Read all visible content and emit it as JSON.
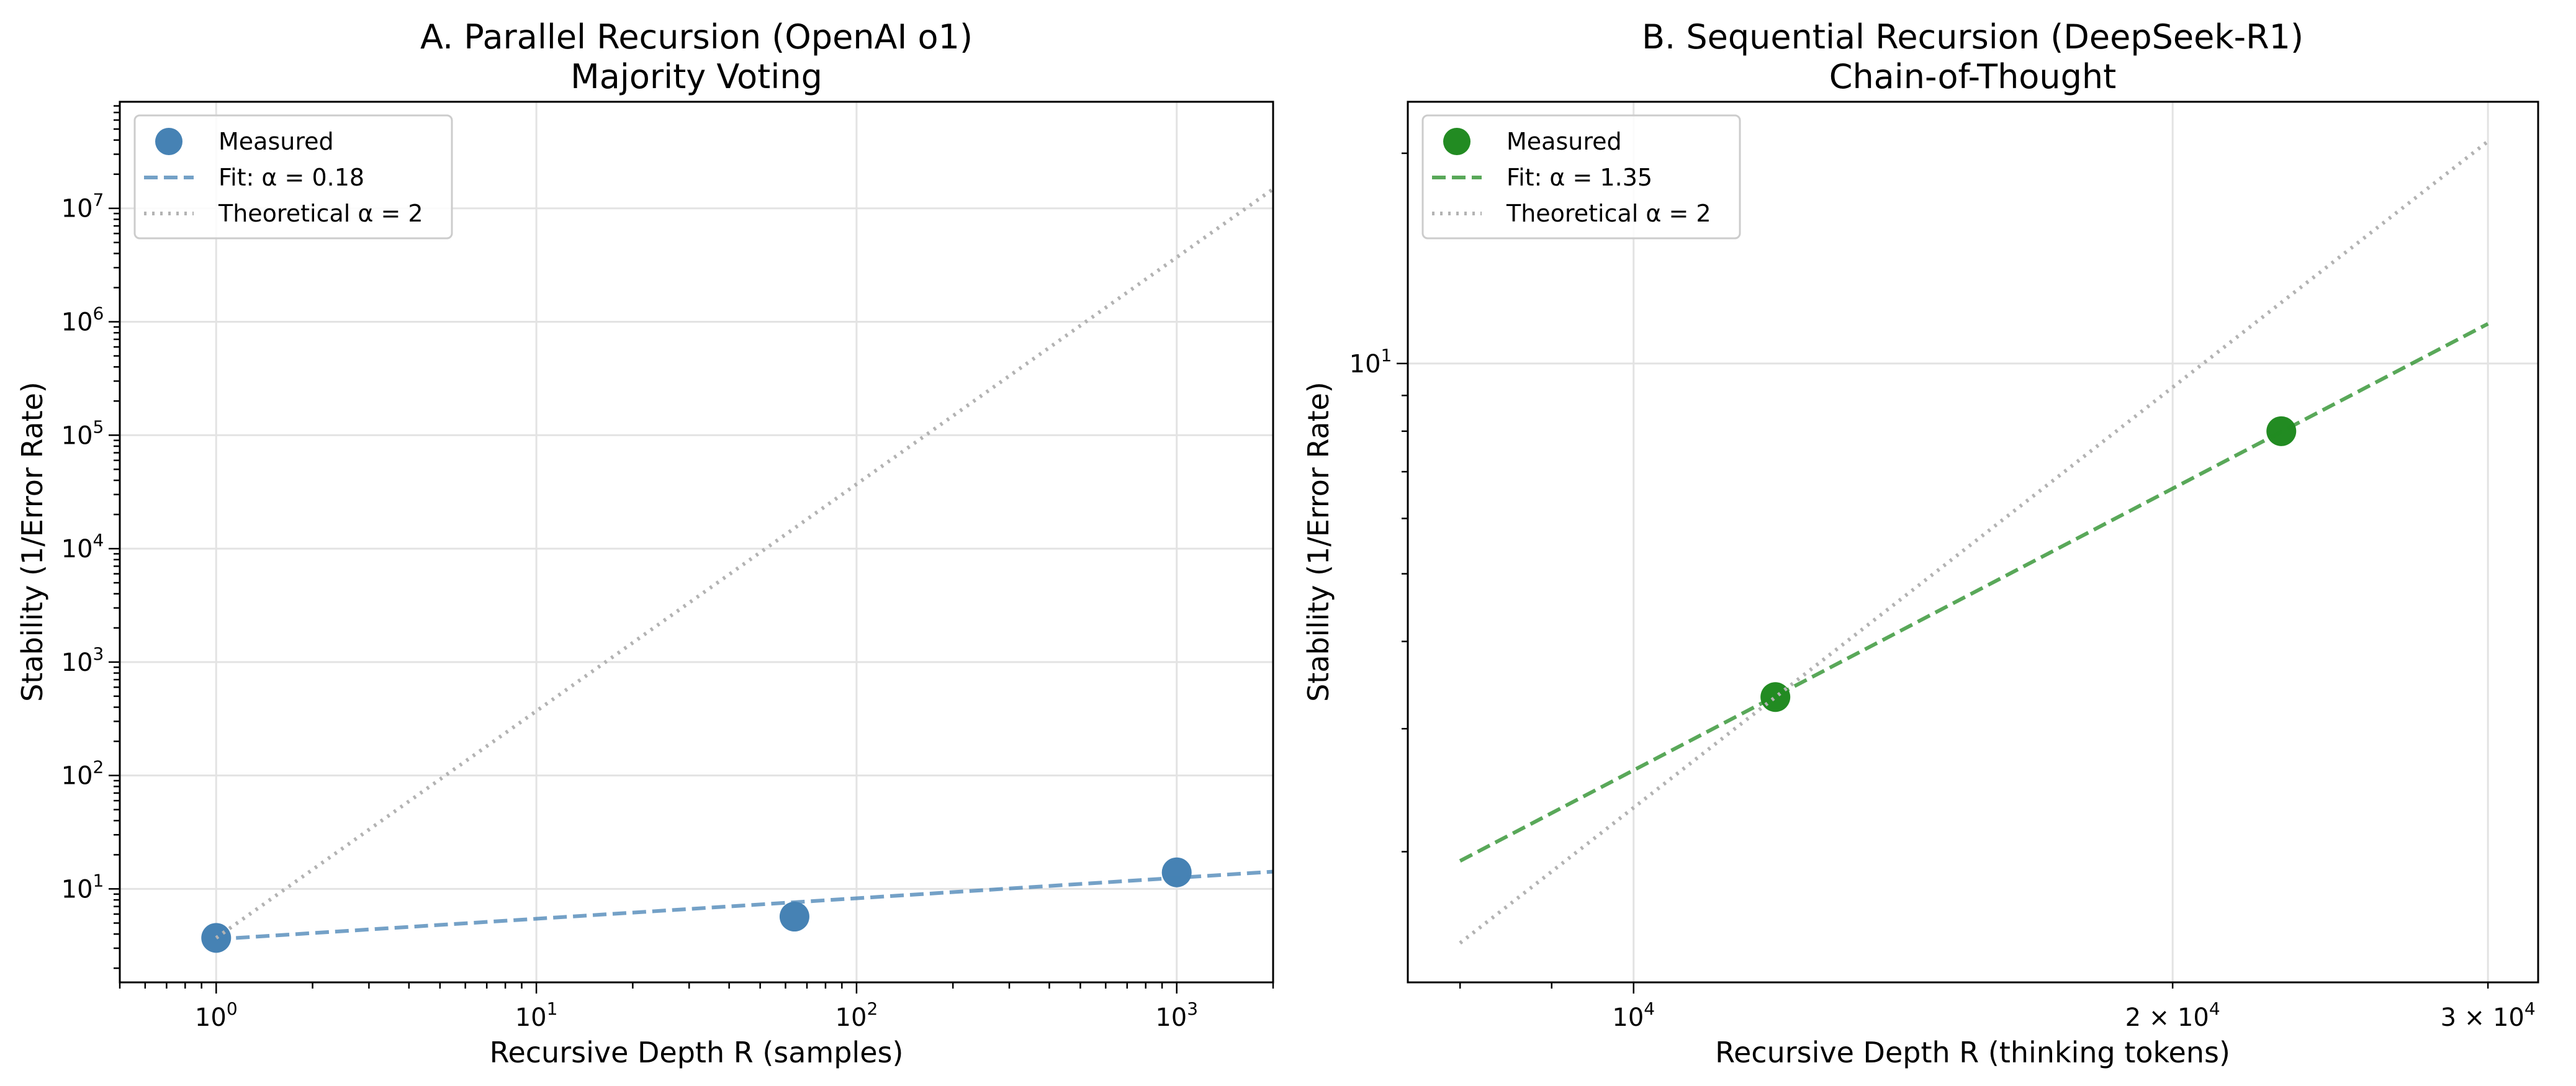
{
  "chart_data": [
    {
      "type": "scatter",
      "title": "A. Parallel Recursion (OpenAI o1)",
      "subtitle": "Majority Voting",
      "xlabel": "Recursive Depth R (samples)",
      "ylabel": "Stability (1/Error Rate)",
      "xscale": "log",
      "yscale": "log",
      "xlim": [
        0.5,
        2000
      ],
      "ylim": [
        1.5,
        87000000
      ],
      "xticks": [
        {
          "base": "10",
          "exp": "0",
          "v": 1
        },
        {
          "base": "10",
          "exp": "1",
          "v": 10
        },
        {
          "base": "10",
          "exp": "2",
          "v": 100
        },
        {
          "base": "10",
          "exp": "3",
          "v": 1000
        }
      ],
      "yticks": [
        {
          "base": "10",
          "exp": "1",
          "v": 10
        },
        {
          "base": "10",
          "exp": "2",
          "v": 100
        },
        {
          "base": "10",
          "exp": "3",
          "v": 1000
        },
        {
          "base": "10",
          "exp": "4",
          "v": 10000
        },
        {
          "base": "10",
          "exp": "5",
          "v": 100000
        },
        {
          "base": "10",
          "exp": "6",
          "v": 1000000
        },
        {
          "base": "10",
          "exp": "7",
          "v": 10000000
        }
      ],
      "grid": true,
      "legend_position": "top-left",
      "color": "#4682b4",
      "series": [
        {
          "name": "Measured",
          "kind": "points",
          "x": [
            1,
            64,
            1000
          ],
          "y": [
            3.7,
            5.7,
            14
          ]
        },
        {
          "name": "Fit: α = 0.18",
          "kind": "dashed",
          "x": [
            1,
            2000
          ],
          "y": [
            3.6,
            14.2
          ]
        },
        {
          "name": "Theoretical α = 2",
          "kind": "dotted",
          "x": [
            1,
            2000
          ],
          "y": [
            3.7,
            14800000
          ]
        }
      ]
    },
    {
      "type": "scatter",
      "title": "B. Sequential Recursion (DeepSeek-R1)",
      "subtitle": "Chain-of-Thought",
      "xlabel": "Recursive Depth R (thinking tokens)",
      "ylabel": "Stability (1/Error Rate)",
      "xscale": "log",
      "yscale": "log",
      "xlim": [
        7480,
        32000
      ],
      "ylim": [
        1.3,
        23.7
      ],
      "xticks": [
        {
          "base": "10",
          "exp": "4",
          "v": 10000,
          "pre": ""
        },
        {
          "base": "10",
          "exp": "4",
          "v": 20000,
          "pre": "2 × "
        },
        {
          "base": "10",
          "exp": "4",
          "v": 30000,
          "pre": "3 × "
        }
      ],
      "yticks": [
        {
          "base": "10",
          "exp": "1",
          "v": 10
        }
      ],
      "grid": true,
      "legend_position": "top-left",
      "color": "#228b22",
      "series": [
        {
          "name": "Measured",
          "kind": "points",
          "x": [
            12000,
            23000
          ],
          "y": [
            3.33,
            8.0
          ]
        },
        {
          "name": "Fit: α = 1.35",
          "kind": "dashed",
          "x": [
            8000,
            30000
          ],
          "y": [
            1.94,
            11.4
          ]
        },
        {
          "name": "Theoretical α = 2",
          "kind": "dotted",
          "x": [
            8000,
            30000
          ],
          "y": [
            1.48,
            20.8
          ]
        }
      ]
    }
  ]
}
